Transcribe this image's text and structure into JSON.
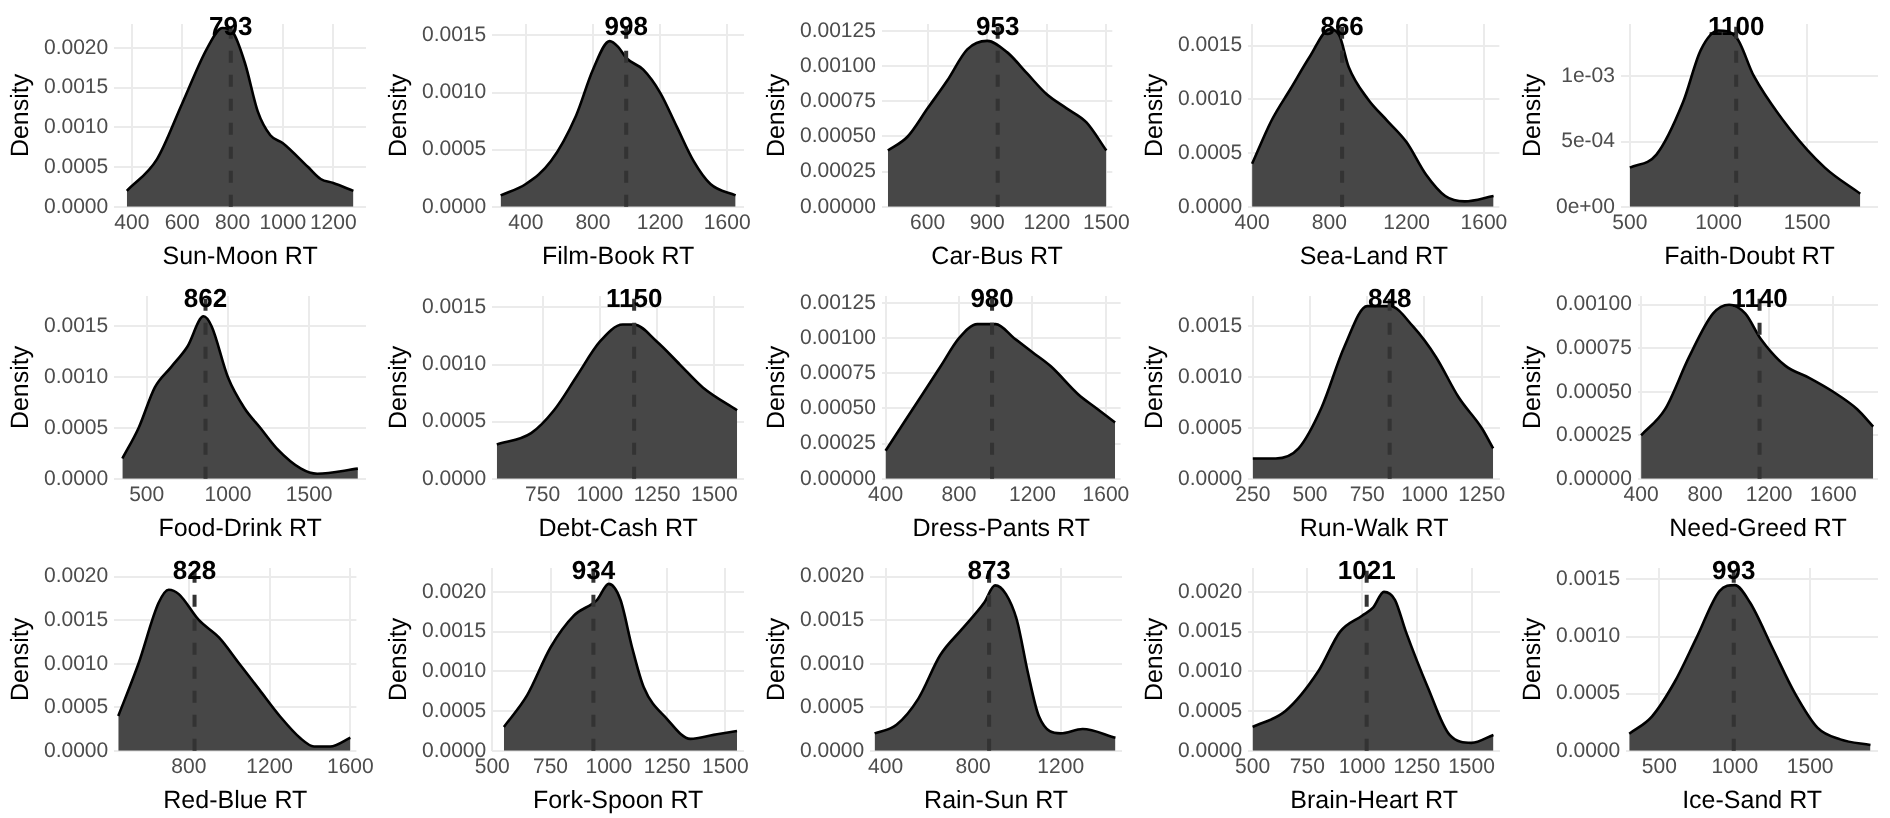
{
  "chart_data": [
    {
      "type": "area",
      "xlabel": "Sun-Moon RT",
      "ylabel": "Density",
      "grid": true,
      "xlim": [
        330,
        1330
      ],
      "xticks": [
        400,
        600,
        800,
        1000,
        1200
      ],
      "ylim": [
        0,
        0.0023
      ],
      "yticks": [
        {
          "value": 0,
          "label": "0.0000"
        },
        {
          "value": 0.0005,
          "label": "0.0005"
        },
        {
          "value": 0.001,
          "label": "0.0010"
        },
        {
          "value": 0.0015,
          "label": "0.0015"
        },
        {
          "value": 0.002,
          "label": "0.0020"
        }
      ],
      "ref_lines": [
        {
          "axis": "x",
          "value": 793,
          "label": "793",
          "line_style": "dashed",
          "color": "#333333"
        }
      ],
      "series": [
        {
          "color": "#474747",
          "x": [
            380,
            500,
            600,
            700,
            760,
            800,
            850,
            900,
            950,
            1000,
            1100,
            1150,
            1200,
            1280
          ],
          "values": [
            0.0002,
            0.0006,
            0.0013,
            0.002,
            0.00225,
            0.0022,
            0.0018,
            0.0012,
            0.0009,
            0.0008,
            0.0005,
            0.00035,
            0.0003,
            0.0002
          ]
        }
      ]
    },
    {
      "type": "area",
      "xlabel": "Film-Book RT",
      "ylabel": "Density",
      "grid": true,
      "xlim": [
        200,
        1700
      ],
      "xticks": [
        400,
        800,
        1200,
        1600
      ],
      "ylim": [
        0,
        0.0016
      ],
      "yticks": [
        {
          "value": 0,
          "label": "0.0000"
        },
        {
          "value": 0.0005,
          "label": "0.0005"
        },
        {
          "value": 0.001,
          "label": "0.0010"
        },
        {
          "value": 0.0015,
          "label": "0.0015"
        }
      ],
      "ref_lines": [
        {
          "axis": "x",
          "value": 998,
          "label": "998",
          "line_style": "dashed",
          "color": "#333333"
        }
      ],
      "series": [
        {
          "color": "#474747",
          "x": [
            250,
            400,
            550,
            700,
            800,
            900,
            950,
            1000,
            1100,
            1200,
            1300,
            1400,
            1500,
            1650
          ],
          "values": [
            0.0001,
            0.0002,
            0.0004,
            0.0008,
            0.0012,
            0.00145,
            0.0014,
            0.0013,
            0.0012,
            0.001,
            0.0007,
            0.0004,
            0.0002,
            0.0001
          ]
        }
      ]
    },
    {
      "type": "area",
      "xlabel": "Car-Bus RT",
      "ylabel": "Density",
      "grid": true,
      "xlim": [
        370,
        1530
      ],
      "xticks": [
        600,
        900,
        1200,
        1500
      ],
      "ylim": [
        0,
        0.0013
      ],
      "yticks": [
        {
          "value": 0,
          "label": "0.00000"
        },
        {
          "value": 0.00025,
          "label": "0.00025"
        },
        {
          "value": 0.0005,
          "label": "0.00050"
        },
        {
          "value": 0.00075,
          "label": "0.00075"
        },
        {
          "value": 0.001,
          "label": "0.00100"
        },
        {
          "value": 0.00125,
          "label": "0.00125"
        }
      ],
      "ref_lines": [
        {
          "axis": "x",
          "value": 953,
          "label": "953",
          "line_style": "dashed",
          "color": "#333333"
        }
      ],
      "series": [
        {
          "color": "#474747",
          "x": [
            400,
            500,
            600,
            700,
            800,
            900,
            1000,
            1100,
            1200,
            1300,
            1400,
            1500
          ],
          "values": [
            0.0004,
            0.0005,
            0.0007,
            0.0009,
            0.00112,
            0.00118,
            0.0011,
            0.00095,
            0.0008,
            0.0007,
            0.0006,
            0.0004
          ]
        }
      ]
    },
    {
      "type": "area",
      "xlabel": "Sea-Land RT",
      "ylabel": "Density",
      "grid": true,
      "xlim": [
        380,
        1680
      ],
      "xticks": [
        400,
        800,
        1200,
        1600
      ],
      "ylim": [
        0,
        0.0017
      ],
      "yticks": [
        {
          "value": 0,
          "label": "0.0000"
        },
        {
          "value": 0.0005,
          "label": "0.0005"
        },
        {
          "value": 0.001,
          "label": "0.0010"
        },
        {
          "value": 0.0015,
          "label": "0.0015"
        }
      ],
      "ref_lines": [
        {
          "axis": "x",
          "value": 866,
          "label": "866",
          "line_style": "dashed",
          "color": "#333333"
        }
      ],
      "series": [
        {
          "color": "#474747",
          "x": [
            400,
            500,
            600,
            700,
            800,
            850,
            900,
            1000,
            1100,
            1200,
            1300,
            1400,
            1500,
            1650
          ],
          "values": [
            0.0004,
            0.0008,
            0.0011,
            0.0014,
            0.00165,
            0.0016,
            0.0013,
            0.001,
            0.0008,
            0.0006,
            0.0003,
            0.0001,
            5e-05,
            0.0001
          ]
        }
      ]
    },
    {
      "type": "area",
      "xlabel": "Faith-Doubt RT",
      "ylabel": "Density",
      "grid": true,
      "xlim": [
        450,
        1900
      ],
      "xticks": [
        500,
        1000,
        1500
      ],
      "ylim": [
        0,
        0.0014
      ],
      "yticks": [
        {
          "value": 0,
          "label": "0e+00"
        },
        {
          "value": 0.0005,
          "label": "5e-04"
        },
        {
          "value": 0.001,
          "label": "1e-03"
        }
      ],
      "ref_lines": [
        {
          "axis": "x",
          "value": 1100,
          "label": "1100",
          "line_style": "dashed",
          "color": "#333333"
        }
      ],
      "series": [
        {
          "color": "#474747",
          "x": [
            500,
            650,
            800,
            900,
            1000,
            1100,
            1200,
            1400,
            1600,
            1800
          ],
          "values": [
            0.0003,
            0.0004,
            0.0008,
            0.0012,
            0.00135,
            0.0013,
            0.001,
            0.0006,
            0.0003,
            0.0001
          ]
        }
      ]
    },
    {
      "type": "area",
      "xlabel": "Food-Drink RT",
      "ylabel": "Density",
      "grid": true,
      "xlim": [
        300,
        1850
      ],
      "xticks": [
        500,
        1000,
        1500
      ],
      "ylim": [
        0,
        0.0018
      ],
      "yticks": [
        {
          "value": 0,
          "label": "0.0000"
        },
        {
          "value": 0.0005,
          "label": "0.0005"
        },
        {
          "value": 0.001,
          "label": "0.0010"
        },
        {
          "value": 0.0015,
          "label": "0.0015"
        }
      ],
      "ref_lines": [
        {
          "axis": "x",
          "value": 862,
          "label": "862",
          "line_style": "dashed",
          "color": "#333333"
        }
      ],
      "series": [
        {
          "color": "#474747",
          "x": [
            350,
            450,
            550,
            650,
            750,
            850,
            900,
            1000,
            1100,
            1200,
            1300,
            1450,
            1550,
            1800
          ],
          "values": [
            0.0002,
            0.0005,
            0.0009,
            0.0011,
            0.0013,
            0.0016,
            0.0015,
            0.001,
            0.0007,
            0.0005,
            0.0003,
            0.0001,
            5e-05,
            0.0001
          ]
        }
      ]
    },
    {
      "type": "area",
      "xlabel": "Debt-Cash RT",
      "ylabel": "Density",
      "grid": true,
      "xlim": [
        530,
        1630
      ],
      "xticks": [
        750,
        1000,
        1250,
        1500
      ],
      "ylim": [
        0,
        0.0016
      ],
      "yticks": [
        {
          "value": 0,
          "label": "0.0000"
        },
        {
          "value": 0.0005,
          "label": "0.0005"
        },
        {
          "value": 0.001,
          "label": "0.0010"
        },
        {
          "value": 0.0015,
          "label": "0.0015"
        }
      ],
      "ref_lines": [
        {
          "axis": "x",
          "value": 1150,
          "label": "1150",
          "line_style": "dashed",
          "color": "#333333"
        }
      ],
      "series": [
        {
          "color": "#474747",
          "x": [
            550,
            700,
            800,
            900,
            1000,
            1100,
            1150,
            1250,
            1350,
            1450,
            1600
          ],
          "values": [
            0.0003,
            0.0004,
            0.0006,
            0.0009,
            0.0012,
            0.00135,
            0.00135,
            0.0012,
            0.001,
            0.0008,
            0.0006
          ]
        }
      ]
    },
    {
      "type": "area",
      "xlabel": "Dress-Pants RT",
      "ylabel": "Density",
      "grid": true,
      "xlim": [
        380,
        1680
      ],
      "xticks": [
        400,
        800,
        1200,
        1600
      ],
      "ylim": [
        0,
        0.0013
      ],
      "yticks": [
        {
          "value": 0,
          "label": "0.00000"
        },
        {
          "value": 0.00025,
          "label": "0.00025"
        },
        {
          "value": 0.0005,
          "label": "0.00050"
        },
        {
          "value": 0.00075,
          "label": "0.00075"
        },
        {
          "value": 0.001,
          "label": "0.00100"
        },
        {
          "value": 0.00125,
          "label": "0.00125"
        }
      ],
      "ref_lines": [
        {
          "axis": "x",
          "value": 980,
          "label": "980",
          "line_style": "dashed",
          "color": "#333333"
        }
      ],
      "series": [
        {
          "color": "#474747",
          "x": [
            400,
            500,
            600,
            700,
            800,
            900,
            1000,
            1100,
            1200,
            1300,
            1450,
            1550,
            1650
          ],
          "values": [
            0.0002,
            0.0004,
            0.0006,
            0.0008,
            0.001,
            0.0011,
            0.0011,
            0.001,
            0.0009,
            0.0008,
            0.0006,
            0.0005,
            0.0004
          ]
        }
      ]
    },
    {
      "type": "area",
      "xlabel": "Run-Walk RT",
      "ylabel": "Density",
      "grid": true,
      "xlim": [
        230,
        1330
      ],
      "xticks": [
        250,
        500,
        750,
        1000,
        1250
      ],
      "ylim": [
        0,
        0.0018
      ],
      "yticks": [
        {
          "value": 0,
          "label": "0.0000"
        },
        {
          "value": 0.0005,
          "label": "0.0005"
        },
        {
          "value": 0.001,
          "label": "0.0010"
        },
        {
          "value": 0.0015,
          "label": "0.0015"
        }
      ],
      "ref_lines": [
        {
          "axis": "x",
          "value": 848,
          "label": "848",
          "line_style": "dashed",
          "color": "#333333"
        }
      ],
      "series": [
        {
          "color": "#474747",
          "x": [
            250,
            350,
            450,
            550,
            650,
            750,
            850,
            950,
            1050,
            1150,
            1250,
            1300
          ],
          "values": [
            0.0002,
            0.0002,
            0.0003,
            0.0007,
            0.0013,
            0.0017,
            0.0017,
            0.0015,
            0.0012,
            0.0008,
            0.0005,
            0.0003
          ]
        }
      ]
    },
    {
      "type": "area",
      "xlabel": "Need-Greed RT",
      "ylabel": "Density",
      "grid": true,
      "xlim": [
        380,
        1880
      ],
      "xticks": [
        400,
        800,
        1200,
        1600
      ],
      "ylim": [
        0,
        0.00105
      ],
      "yticks": [
        {
          "value": 0,
          "label": "0.00000"
        },
        {
          "value": 0.00025,
          "label": "0.00025"
        },
        {
          "value": 0.0005,
          "label": "0.00050"
        },
        {
          "value": 0.00075,
          "label": "0.00075"
        },
        {
          "value": 0.001,
          "label": "0.00100"
        }
      ],
      "ref_lines": [
        {
          "axis": "x",
          "value": 1140,
          "label": "1140",
          "line_style": "dashed",
          "color": "#333333"
        }
      ],
      "series": [
        {
          "color": "#474747",
          "x": [
            400,
            550,
            700,
            850,
            950,
            1050,
            1150,
            1300,
            1450,
            1600,
            1750,
            1850
          ],
          "values": [
            0.00025,
            0.0004,
            0.0007,
            0.00095,
            0.001,
            0.00095,
            0.0008,
            0.00065,
            0.00058,
            0.0005,
            0.0004,
            0.0003
          ]
        }
      ]
    },
    {
      "type": "area",
      "xlabel": "Red-Blue RT",
      "ylabel": "Density",
      "grid": true,
      "xlim": [
        430,
        1630
      ],
      "xticks": [
        800,
        1200,
        1600
      ],
      "ylim": [
        0,
        0.0021
      ],
      "yticks": [
        {
          "value": 0,
          "label": "0.0000"
        },
        {
          "value": 0.0005,
          "label": "0.0005"
        },
        {
          "value": 0.001,
          "label": "0.0010"
        },
        {
          "value": 0.0015,
          "label": "0.0015"
        },
        {
          "value": 0.002,
          "label": "0.0020"
        }
      ],
      "ref_lines": [
        {
          "axis": "x",
          "value": 828,
          "label": "828",
          "line_style": "dashed",
          "color": "#333333"
        }
      ],
      "series": [
        {
          "color": "#474747",
          "x": [
            450,
            550,
            650,
            700,
            750,
            850,
            950,
            1050,
            1150,
            1250,
            1350,
            1420,
            1500,
            1600
          ],
          "values": [
            0.0004,
            0.001,
            0.0017,
            0.00185,
            0.0018,
            0.0015,
            0.0013,
            0.001,
            0.0007,
            0.0004,
            0.00015,
            5e-05,
            5e-05,
            0.00015
          ]
        }
      ]
    },
    {
      "type": "area",
      "xlabel": "Fork-Spoon RT",
      "ylabel": "Density",
      "grid": true,
      "xlim": [
        500,
        1580
      ],
      "xticks": [
        500,
        750,
        1000,
        1250,
        1500
      ],
      "ylim": [
        0,
        0.0023
      ],
      "yticks": [
        {
          "value": 0,
          "label": "0.0000"
        },
        {
          "value": 0.0005,
          "label": "0.0005"
        },
        {
          "value": 0.001,
          "label": "0.0010"
        },
        {
          "value": 0.0015,
          "label": "0.0015"
        },
        {
          "value": 0.002,
          "label": "0.0020"
        }
      ],
      "ref_lines": [
        {
          "axis": "x",
          "value": 934,
          "label": "934",
          "line_style": "dashed",
          "color": "#333333"
        }
      ],
      "series": [
        {
          "color": "#474747",
          "x": [
            550,
            650,
            750,
            850,
            950,
            1000,
            1050,
            1100,
            1150,
            1250,
            1350,
            1450,
            1550
          ],
          "values": [
            0.0003,
            0.0007,
            0.0013,
            0.0017,
            0.0019,
            0.0021,
            0.0019,
            0.0013,
            0.0008,
            0.0004,
            0.00015,
            0.0002,
            0.00025
          ]
        }
      ]
    },
    {
      "type": "area",
      "xlabel": "Rain-Sun RT",
      "ylabel": "Density",
      "grid": true,
      "xlim": [
        330,
        1480
      ],
      "xticks": [
        400,
        800,
        1200
      ],
      "ylim": [
        0,
        0.0021
      ],
      "yticks": [
        {
          "value": 0,
          "label": "0.0000"
        },
        {
          "value": 0.0005,
          "label": "0.0005"
        },
        {
          "value": 0.001,
          "label": "0.0010"
        },
        {
          "value": 0.0015,
          "label": "0.0015"
        },
        {
          "value": 0.002,
          "label": "0.0020"
        }
      ],
      "ref_lines": [
        {
          "axis": "x",
          "value": 873,
          "label": "873",
          "line_style": "dashed",
          "color": "#333333"
        }
      ],
      "series": [
        {
          "color": "#474747",
          "x": [
            350,
            450,
            550,
            650,
            750,
            850,
            900,
            950,
            1000,
            1050,
            1100,
            1200,
            1300,
            1450
          ],
          "values": [
            0.0002,
            0.0003,
            0.0006,
            0.0011,
            0.0014,
            0.0017,
            0.0019,
            0.0018,
            0.0015,
            0.0009,
            0.0004,
            0.0002,
            0.00025,
            0.00015
          ]
        }
      ]
    },
    {
      "type": "area",
      "xlabel": "Brain-Heart RT",
      "ylabel": "Density",
      "grid": true,
      "xlim": [
        480,
        1630
      ],
      "xticks": [
        500,
        750,
        1000,
        1250,
        1500
      ],
      "ylim": [
        0,
        0.0023
      ],
      "yticks": [
        {
          "value": 0,
          "label": "0.0000"
        },
        {
          "value": 0.0005,
          "label": "0.0005"
        },
        {
          "value": 0.001,
          "label": "0.0010"
        },
        {
          "value": 0.0015,
          "label": "0.0015"
        },
        {
          "value": 0.002,
          "label": "0.0020"
        }
      ],
      "ref_lines": [
        {
          "axis": "x",
          "value": 1021,
          "label": "1021",
          "line_style": "dashed",
          "color": "#333333"
        }
      ],
      "series": [
        {
          "color": "#474747",
          "x": [
            500,
            650,
            800,
            900,
            1000,
            1050,
            1100,
            1150,
            1200,
            1300,
            1400,
            1500,
            1600
          ],
          "values": [
            0.0003,
            0.0005,
            0.001,
            0.0015,
            0.0017,
            0.0018,
            0.002,
            0.0019,
            0.0015,
            0.0008,
            0.0002,
            0.0001,
            0.0002
          ]
        }
      ]
    },
    {
      "type": "area",
      "xlabel": "Ice-Sand RT",
      "ylabel": "Density",
      "grid": true,
      "xlim": [
        280,
        1950
      ],
      "xticks": [
        500,
        1000,
        1500
      ],
      "ylim": [
        0,
        0.0016
      ],
      "yticks": [
        {
          "value": 0,
          "label": "0.0000"
        },
        {
          "value": 0.0005,
          "label": "0.0005"
        },
        {
          "value": 0.001,
          "label": "0.0010"
        },
        {
          "value": 0.0015,
          "label": "0.0015"
        }
      ],
      "ref_lines": [
        {
          "axis": "x",
          "value": 993,
          "label": "993",
          "line_style": "dashed",
          "color": "#333333"
        }
      ],
      "series": [
        {
          "color": "#474747",
          "x": [
            300,
            450,
            600,
            750,
            900,
            1000,
            1100,
            1250,
            1400,
            1550,
            1700,
            1900
          ],
          "values": [
            0.00015,
            0.0003,
            0.0006,
            0.001,
            0.0014,
            0.00145,
            0.0013,
            0.0009,
            0.0005,
            0.0002,
            0.0001,
            5e-05
          ]
        }
      ]
    }
  ]
}
